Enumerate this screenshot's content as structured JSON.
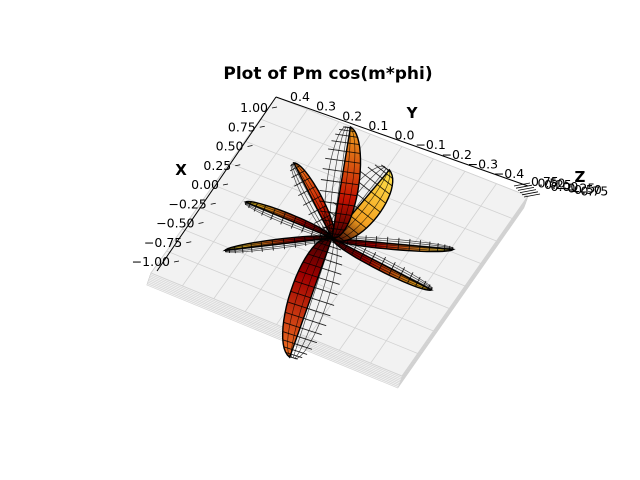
{
  "chart_data": {
    "type": "surface3d",
    "title": "Plot of Pm cos(m*phi)",
    "xlabel": "X",
    "ylabel": "Y",
    "zlabel": "Z",
    "x_ticks": [
      "1.00",
      "0.75",
      "0.50",
      "0.25",
      "0.00",
      "−0.25",
      "−0.50",
      "−0.75",
      "−1.00"
    ],
    "y_ticks": [
      "0.4",
      "0.3",
      "0.2",
      "0.1",
      "0.0",
      "−0.1",
      "−0.2",
      "−0.3",
      "−0.4"
    ],
    "z_ticks": [
      "0.75",
      "0.50",
      "0.25",
      "0.00",
      "−0.25",
      "−0.50",
      "−0.75"
    ],
    "xlim": [
      -1.0,
      1.0
    ],
    "ylim": [
      -0.4,
      0.4
    ],
    "surface": {
      "lobes": [
        {
          "angle_deg": 52,
          "length": 0.38,
          "width": 0.5,
          "colors": [
            "#ffe24a",
            "#f4a020"
          ]
        },
        {
          "angle_deg": 82,
          "length": 0.48,
          "width": 0.34,
          "colors": [
            "#f0a020",
            "#c21000"
          ]
        },
        {
          "angle_deg": 118,
          "length": 0.36,
          "width": 0.24,
          "colors": [
            "#f08020",
            "#c81800"
          ]
        },
        {
          "angle_deg": 158,
          "length": 0.4,
          "width": 0.14,
          "colors": [
            "#e8d020",
            "#900000"
          ]
        },
        {
          "angle_deg": 187,
          "length": 0.46,
          "width": 0.1,
          "colors": [
            "#e8e030",
            "#900000"
          ]
        },
        {
          "angle_deg": 252,
          "length": 0.54,
          "width": 0.36,
          "colors": [
            "#f07020",
            "#a00000"
          ]
        },
        {
          "angle_deg": 333,
          "length": 0.48,
          "width": 0.13,
          "colors": [
            "#e8c020",
            "#980000"
          ]
        },
        {
          "angle_deg": 355,
          "length": 0.52,
          "width": 0.1,
          "colors": [
            "#f0e040",
            "#a00000"
          ]
        }
      ],
      "colormap": "hot"
    }
  }
}
